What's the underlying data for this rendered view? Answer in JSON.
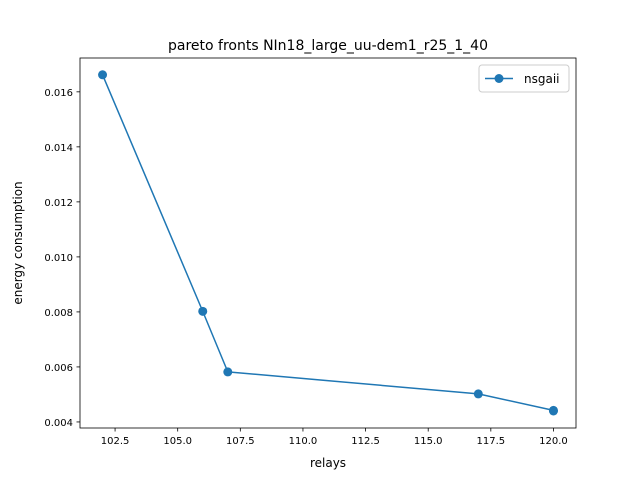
{
  "chart_data": {
    "type": "line",
    "title": "pareto fronts NIn18_large_uu-dem1_r25_1_40",
    "xlabel": "relays",
    "ylabel": "energy consumption",
    "xlim": [
      101.1,
      120.9
    ],
    "ylim": [
      0.00378,
      0.01723
    ],
    "x_ticks": [
      102.5,
      105.0,
      107.5,
      110.0,
      112.5,
      115.0,
      117.5,
      120.0
    ],
    "x_tick_labels": [
      "102.5",
      "105.0",
      "107.5",
      "110.0",
      "112.5",
      "115.0",
      "117.5",
      "120.0"
    ],
    "y_ticks": [
      0.004,
      0.006,
      0.008,
      0.01,
      0.012,
      0.014,
      0.016
    ],
    "y_tick_labels": [
      "0.004",
      "0.006",
      "0.008",
      "0.010",
      "0.012",
      "0.014",
      "0.016"
    ],
    "grid": false,
    "legend_position": "top-right",
    "series": [
      {
        "name": "nsgaii",
        "color": "#1f77b4",
        "marker": "circle",
        "x": [
          102,
          106,
          107,
          117,
          120,
          120
        ],
        "y": [
          0.01662,
          0.00802,
          0.00582,
          0.00502,
          0.00442,
          0.0044
        ]
      }
    ]
  }
}
